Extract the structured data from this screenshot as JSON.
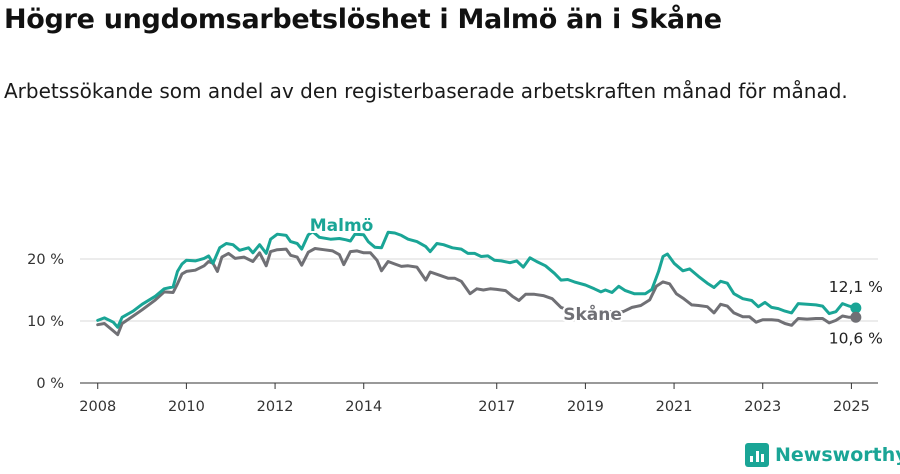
{
  "header": {
    "title": "Högre ungdomsarbetslöshet i Malmö än i Skåne",
    "subtitle": "Arbetssökande som andel av den registerbaserade arbetskraften månad för månad."
  },
  "brand": {
    "name": "Newsworthy"
  },
  "colors": {
    "malmo": "#1aa596",
    "skane": "#707075",
    "grid": "#d9d9d9",
    "axis": "#333333"
  },
  "chart_data": {
    "type": "line",
    "title": "Högre ungdomsarbetslöshet i Malmö än i Skåne",
    "xlabel": "",
    "ylabel": "",
    "xlim": [
      2007.6,
      2025.6
    ],
    "ylim": [
      0,
      25
    ],
    "x_ticks": [
      2008,
      2010,
      2012,
      2014,
      2017,
      2019,
      2021,
      2023,
      2025
    ],
    "y_ticks": [
      {
        "value": 0,
        "label": "0 %"
      },
      {
        "value": 10,
        "label": "10 %"
      },
      {
        "value": 20,
        "label": "20 %"
      }
    ],
    "series": [
      {
        "name": "Malmö",
        "color": "#1aa596",
        "points": [
          [
            2008.0,
            10.1
          ],
          [
            2008.15,
            10.5
          ],
          [
            2008.35,
            9.8
          ],
          [
            2008.45,
            9.0
          ],
          [
            2008.55,
            10.6
          ],
          [
            2008.8,
            11.6
          ],
          [
            2009.0,
            12.7
          ],
          [
            2009.3,
            14.0
          ],
          [
            2009.5,
            15.2
          ],
          [
            2009.7,
            15.5
          ],
          [
            2009.8,
            18.0
          ],
          [
            2009.9,
            19.2
          ],
          [
            2010.0,
            19.8
          ],
          [
            2010.2,
            19.7
          ],
          [
            2010.4,
            20.1
          ],
          [
            2010.5,
            20.5
          ],
          [
            2010.6,
            19.3
          ],
          [
            2010.75,
            21.8
          ],
          [
            2010.9,
            22.5
          ],
          [
            2011.05,
            22.3
          ],
          [
            2011.2,
            21.4
          ],
          [
            2011.4,
            21.8
          ],
          [
            2011.5,
            21.0
          ],
          [
            2011.65,
            22.3
          ],
          [
            2011.8,
            20.9
          ],
          [
            2011.9,
            23.2
          ],
          [
            2012.05,
            24.0
          ],
          [
            2012.25,
            23.8
          ],
          [
            2012.35,
            22.8
          ],
          [
            2012.5,
            22.5
          ],
          [
            2012.6,
            21.6
          ],
          [
            2012.75,
            23.9
          ],
          [
            2012.85,
            24.4
          ],
          [
            2013.0,
            23.5
          ],
          [
            2013.25,
            23.2
          ],
          [
            2013.45,
            23.3
          ],
          [
            2013.6,
            23.1
          ],
          [
            2013.7,
            22.9
          ],
          [
            2013.8,
            24.0
          ],
          [
            2014.0,
            23.9
          ],
          [
            2014.1,
            22.8
          ],
          [
            2014.25,
            21.9
          ],
          [
            2014.4,
            21.8
          ],
          [
            2014.55,
            24.3
          ],
          [
            2014.7,
            24.2
          ],
          [
            2014.85,
            23.8
          ],
          [
            2015.0,
            23.2
          ],
          [
            2015.2,
            22.8
          ],
          [
            2015.4,
            22.0
          ],
          [
            2015.5,
            21.2
          ],
          [
            2015.65,
            22.5
          ],
          [
            2015.8,
            22.3
          ],
          [
            2016.0,
            21.8
          ],
          [
            2016.2,
            21.6
          ],
          [
            2016.35,
            20.9
          ],
          [
            2016.5,
            20.9
          ],
          [
            2016.65,
            20.4
          ],
          [
            2016.8,
            20.5
          ],
          [
            2016.95,
            19.8
          ],
          [
            2017.1,
            19.7
          ],
          [
            2017.3,
            19.4
          ],
          [
            2017.45,
            19.7
          ],
          [
            2017.6,
            18.7
          ],
          [
            2017.75,
            20.2
          ],
          [
            2017.9,
            19.6
          ],
          [
            2018.1,
            18.9
          ],
          [
            2018.3,
            17.7
          ],
          [
            2018.45,
            16.6
          ],
          [
            2018.6,
            16.7
          ],
          [
            2018.75,
            16.3
          ],
          [
            2019.0,
            15.8
          ],
          [
            2019.2,
            15.2
          ],
          [
            2019.35,
            14.7
          ],
          [
            2019.45,
            15.0
          ],
          [
            2019.6,
            14.6
          ],
          [
            2019.75,
            15.6
          ],
          [
            2019.9,
            14.9
          ],
          [
            2020.1,
            14.4
          ],
          [
            2020.35,
            14.4
          ],
          [
            2020.5,
            15.1
          ],
          [
            2020.65,
            18.0
          ],
          [
            2020.75,
            20.4
          ],
          [
            2020.85,
            20.8
          ],
          [
            2021.0,
            19.3
          ],
          [
            2021.2,
            18.1
          ],
          [
            2021.35,
            18.4
          ],
          [
            2021.55,
            17.2
          ],
          [
            2021.75,
            16.1
          ],
          [
            2021.9,
            15.4
          ],
          [
            2022.05,
            16.4
          ],
          [
            2022.2,
            16.1
          ],
          [
            2022.35,
            14.4
          ],
          [
            2022.55,
            13.6
          ],
          [
            2022.75,
            13.3
          ],
          [
            2022.9,
            12.3
          ],
          [
            2023.05,
            13.0
          ],
          [
            2023.2,
            12.2
          ],
          [
            2023.35,
            12.0
          ],
          [
            2023.5,
            11.6
          ],
          [
            2023.65,
            11.3
          ],
          [
            2023.8,
            12.8
          ],
          [
            2024.0,
            12.7
          ],
          [
            2024.2,
            12.6
          ],
          [
            2024.35,
            12.4
          ],
          [
            2024.5,
            11.2
          ],
          [
            2024.65,
            11.5
          ],
          [
            2024.8,
            12.8
          ],
          [
            2024.95,
            12.4
          ],
          [
            2025.1,
            12.1
          ]
        ]
      },
      {
        "name": "Skåne",
        "color": "#707075",
        "points": [
          [
            2008.0,
            9.4
          ],
          [
            2008.15,
            9.6
          ],
          [
            2008.35,
            8.4
          ],
          [
            2008.45,
            7.8
          ],
          [
            2008.55,
            9.6
          ],
          [
            2008.8,
            10.8
          ],
          [
            2009.0,
            11.8
          ],
          [
            2009.3,
            13.4
          ],
          [
            2009.5,
            14.7
          ],
          [
            2009.7,
            14.6
          ],
          [
            2009.8,
            16.0
          ],
          [
            2009.9,
            17.6
          ],
          [
            2010.0,
            18.0
          ],
          [
            2010.2,
            18.2
          ],
          [
            2010.4,
            18.9
          ],
          [
            2010.5,
            19.6
          ],
          [
            2010.6,
            19.3
          ],
          [
            2010.7,
            18.0
          ],
          [
            2010.8,
            20.3
          ],
          [
            2010.95,
            20.9
          ],
          [
            2011.1,
            20.1
          ],
          [
            2011.3,
            20.3
          ],
          [
            2011.5,
            19.6
          ],
          [
            2011.65,
            21.0
          ],
          [
            2011.8,
            18.9
          ],
          [
            2011.9,
            21.2
          ],
          [
            2012.05,
            21.5
          ],
          [
            2012.25,
            21.6
          ],
          [
            2012.35,
            20.6
          ],
          [
            2012.5,
            20.3
          ],
          [
            2012.6,
            19.0
          ],
          [
            2012.75,
            21.1
          ],
          [
            2012.9,
            21.7
          ],
          [
            2013.1,
            21.5
          ],
          [
            2013.3,
            21.3
          ],
          [
            2013.45,
            20.7
          ],
          [
            2013.55,
            19.1
          ],
          [
            2013.7,
            21.2
          ],
          [
            2013.85,
            21.3
          ],
          [
            2014.0,
            21.0
          ],
          [
            2014.15,
            21.0
          ],
          [
            2014.3,
            19.8
          ],
          [
            2014.4,
            18.1
          ],
          [
            2014.55,
            19.6
          ],
          [
            2014.7,
            19.2
          ],
          [
            2014.85,
            18.8
          ],
          [
            2015.0,
            18.9
          ],
          [
            2015.2,
            18.7
          ],
          [
            2015.4,
            16.6
          ],
          [
            2015.5,
            17.9
          ],
          [
            2015.7,
            17.4
          ],
          [
            2015.9,
            16.9
          ],
          [
            2016.05,
            16.9
          ],
          [
            2016.2,
            16.4
          ],
          [
            2016.4,
            14.4
          ],
          [
            2016.55,
            15.2
          ],
          [
            2016.7,
            15.0
          ],
          [
            2016.85,
            15.2
          ],
          [
            2017.0,
            15.1
          ],
          [
            2017.2,
            14.9
          ],
          [
            2017.35,
            14.0
          ],
          [
            2017.5,
            13.3
          ],
          [
            2017.65,
            14.3
          ],
          [
            2017.85,
            14.3
          ],
          [
            2018.05,
            14.1
          ],
          [
            2018.25,
            13.6
          ],
          [
            2018.45,
            12.2
          ],
          [
            2018.65,
            11.7
          ],
          [
            2018.8,
            11.7
          ],
          [
            2019.0,
            11.7
          ],
          [
            2019.2,
            11.2
          ],
          [
            2019.4,
            11.7
          ],
          [
            2019.55,
            11.5
          ],
          [
            2019.7,
            11.6
          ],
          [
            2019.85,
            11.5
          ],
          [
            2020.05,
            12.2
          ],
          [
            2020.25,
            12.5
          ],
          [
            2020.45,
            13.4
          ],
          [
            2020.6,
            15.6
          ],
          [
            2020.75,
            16.3
          ],
          [
            2020.9,
            16.0
          ],
          [
            2021.05,
            14.4
          ],
          [
            2021.2,
            13.7
          ],
          [
            2021.4,
            12.6
          ],
          [
            2021.55,
            12.5
          ],
          [
            2021.75,
            12.3
          ],
          [
            2021.9,
            11.3
          ],
          [
            2022.05,
            12.7
          ],
          [
            2022.2,
            12.4
          ],
          [
            2022.35,
            11.3
          ],
          [
            2022.55,
            10.7
          ],
          [
            2022.7,
            10.7
          ],
          [
            2022.85,
            9.8
          ],
          [
            2023.0,
            10.2
          ],
          [
            2023.2,
            10.2
          ],
          [
            2023.35,
            10.1
          ],
          [
            2023.5,
            9.6
          ],
          [
            2023.65,
            9.3
          ],
          [
            2023.8,
            10.4
          ],
          [
            2024.0,
            10.3
          ],
          [
            2024.2,
            10.4
          ],
          [
            2024.35,
            10.4
          ],
          [
            2024.5,
            9.7
          ],
          [
            2024.65,
            10.1
          ],
          [
            2024.8,
            10.8
          ],
          [
            2024.95,
            10.6
          ],
          [
            2025.1,
            10.6
          ]
        ]
      }
    ],
    "series_labels": [
      {
        "series": "Malmö",
        "text": "Malmö"
      },
      {
        "series": "Skåne",
        "text": "Skåne"
      }
    ],
    "end_labels": [
      {
        "series": "Malmö",
        "value": 12.1,
        "text": "12,1 %"
      },
      {
        "series": "Skåne",
        "value": 10.6,
        "text": "10,6 %"
      }
    ]
  }
}
